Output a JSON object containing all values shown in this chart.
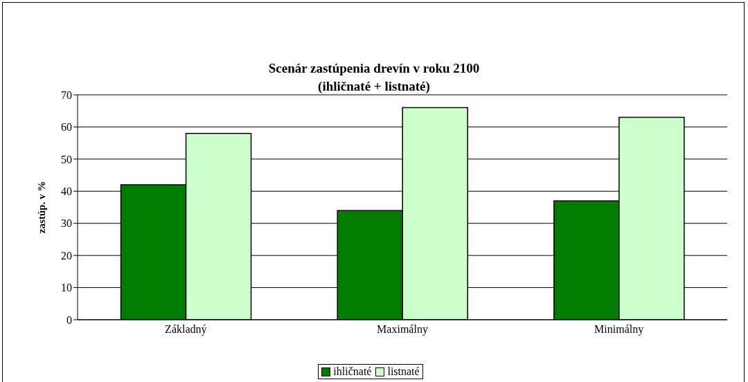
{
  "chart_data": {
    "type": "bar",
    "title": "Scenár zastúpenia drevín v roku 2100",
    "subtitle": "(ihličnaté + listnaté)",
    "ylabel": "zastúp. v %",
    "categories": [
      "Základný",
      "Maximálny",
      "Minimálny"
    ],
    "series": [
      {
        "name": "ihličnaté",
        "color": "#007d00",
        "values": [
          42,
          34,
          37
        ]
      },
      {
        "name": "listnaté",
        "color": "#ccffcc",
        "values": [
          58,
          66,
          63
        ]
      }
    ],
    "ylim": [
      0,
      70
    ],
    "yticks": [
      0,
      10,
      20,
      30,
      40,
      50,
      60,
      70
    ],
    "grid": "y",
    "legend": "bottom"
  }
}
